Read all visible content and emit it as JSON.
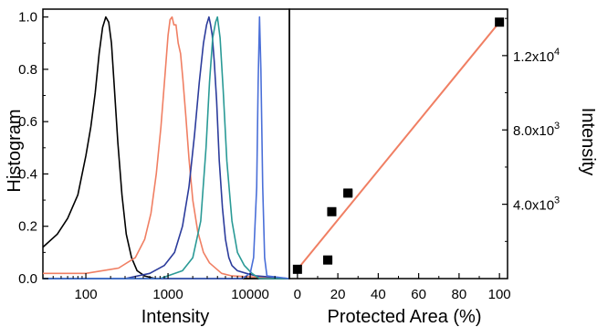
{
  "chart_data": [
    {
      "type": "line",
      "title": "",
      "xlabel": "Intensity",
      "ylabel": "Histogram",
      "x_scale": "log",
      "xlim": [
        30,
        30000
      ],
      "ylim": [
        0,
        1.03
      ],
      "x_ticks": [
        {
          "value": 100,
          "label": "100"
        },
        {
          "value": 1000,
          "label": "1000"
        },
        {
          "value": 10000,
          "label": "10000"
        }
      ],
      "y_ticks": [
        {
          "value": 0.0,
          "label": "0.0"
        },
        {
          "value": 0.2,
          "label": "0.2"
        },
        {
          "value": 0.4,
          "label": "0.4"
        },
        {
          "value": 0.6,
          "label": "0.6"
        },
        {
          "value": 0.8,
          "label": "0.8"
        },
        {
          "value": 1.0,
          "label": "1.0"
        }
      ],
      "series": [
        {
          "color": "#000000",
          "x": [
            30,
            45,
            60,
            80,
            100,
            115,
            130,
            145,
            160,
            175,
            190,
            205,
            220,
            245,
            275,
            310,
            360,
            420,
            520,
            700,
            1000,
            3000,
            30000
          ],
          "y": [
            0.12,
            0.17,
            0.23,
            0.32,
            0.47,
            0.58,
            0.71,
            0.86,
            0.96,
            1.0,
            0.98,
            0.9,
            0.75,
            0.52,
            0.32,
            0.17,
            0.08,
            0.03,
            0.01,
            0.0,
            0.0,
            0.0,
            0.0
          ]
        },
        {
          "color": "#f07f63",
          "x": [
            30,
            100,
            250,
            400,
            520,
            620,
            720,
            820,
            920,
            1000,
            1060,
            1120,
            1180,
            1250,
            1330,
            1420,
            1520,
            1650,
            1800,
            2000,
            2300,
            2700,
            3200,
            4500,
            6000,
            30000
          ],
          "y": [
            0.02,
            0.02,
            0.04,
            0.08,
            0.15,
            0.25,
            0.4,
            0.58,
            0.78,
            0.93,
            0.99,
            1.0,
            0.97,
            0.97,
            0.9,
            0.86,
            0.76,
            0.62,
            0.46,
            0.3,
            0.18,
            0.1,
            0.06,
            0.02,
            0.01,
            0.0
          ]
        },
        {
          "color": "#2c3c9c",
          "x": [
            30,
            300,
            600,
            900,
            1200,
            1500,
            1800,
            2100,
            2400,
            2700,
            2950,
            3150,
            3300,
            3450,
            3650,
            3900,
            4200,
            4600,
            5000,
            5500,
            6000,
            7000,
            9000,
            12000,
            30000
          ],
          "y": [
            0.0,
            0.0,
            0.02,
            0.05,
            0.1,
            0.2,
            0.35,
            0.55,
            0.75,
            0.9,
            0.97,
            1.0,
            0.97,
            0.93,
            0.83,
            0.68,
            0.45,
            0.27,
            0.15,
            0.08,
            0.05,
            0.03,
            0.02,
            0.01,
            0.0
          ]
        },
        {
          "color": "#2a9a96",
          "x": [
            30,
            800,
            1500,
            2000,
            2500,
            2900,
            3200,
            3500,
            3800,
            4000,
            4300,
            4700,
            5200,
            6000,
            7000,
            8500,
            10500,
            13000,
            30000
          ],
          "y": [
            0.0,
            0.0,
            0.03,
            0.08,
            0.22,
            0.5,
            0.75,
            0.92,
            0.98,
            1.0,
            0.92,
            0.72,
            0.45,
            0.22,
            0.1,
            0.05,
            0.02,
            0.0,
            0.0
          ]
        },
        {
          "color": "#4a6fd8",
          "x": [
            30,
            8000,
            10000,
            11000,
            12000,
            12500,
            13000,
            13500,
            14200,
            15000,
            16000,
            30000
          ],
          "y": [
            0.0,
            0.0,
            0.02,
            0.08,
            0.35,
            0.75,
            1.0,
            0.8,
            0.35,
            0.08,
            0.01,
            0.0
          ]
        }
      ]
    },
    {
      "type": "scatter",
      "title": "",
      "xlabel": "Protected Area (%)",
      "ylabel": "Intensity",
      "y_axis_side": "right",
      "xlim": [
        -4,
        104
      ],
      "ylim": [
        0,
        14500
      ],
      "x_ticks": [
        {
          "value": 0,
          "label": "0"
        },
        {
          "value": 20,
          "label": "20"
        },
        {
          "value": 40,
          "label": "40"
        },
        {
          "value": 60,
          "label": "60"
        },
        {
          "value": 80,
          "label": "80"
        },
        {
          "value": 100,
          "label": "100"
        }
      ],
      "y_ticks": [
        {
          "value": 4000,
          "mantissa": "4.0x10",
          "exponent": "3"
        },
        {
          "value": 8000,
          "mantissa": "8.0x10",
          "exponent": "3"
        },
        {
          "value": 12000,
          "mantissa": "1.2x10",
          "exponent": "4"
        }
      ],
      "points": [
        {
          "x": 0,
          "y": 500,
          "xerr": 0
        },
        {
          "x": 15,
          "y": 1000,
          "xerr": 2
        },
        {
          "x": 17,
          "y": 3600,
          "xerr": 2
        },
        {
          "x": 25,
          "y": 4600,
          "xerr": 2
        },
        {
          "x": 100,
          "y": 13800,
          "xerr": 0
        }
      ],
      "fit_line": {
        "color": "#f07f63",
        "x": [
          0,
          100
        ],
        "y": [
          500,
          13800
        ]
      }
    }
  ]
}
